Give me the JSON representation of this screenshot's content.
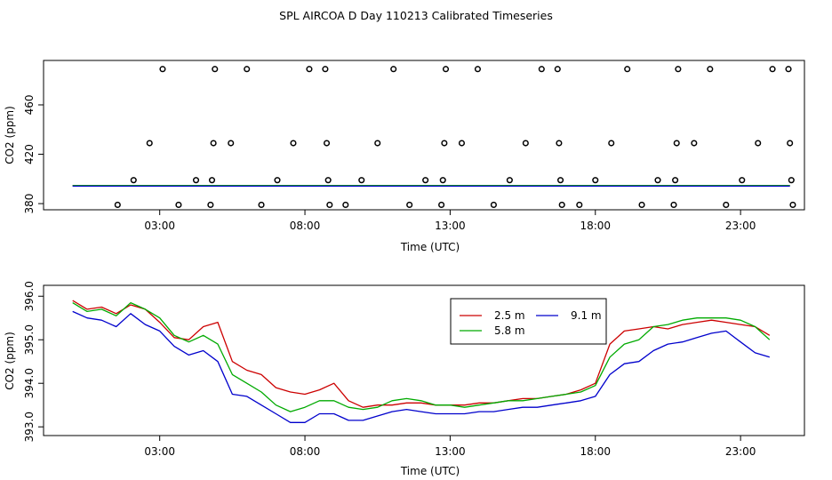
{
  "chart_data": {
    "title": "SPL AIRCOA D  Day 110213  Calibrated Timeseries",
    "x_ticks": [
      {
        "value": 3,
        "label": "03:00"
      },
      {
        "value": 8,
        "label": "08:00"
      },
      {
        "value": 13,
        "label": "13:00"
      },
      {
        "value": 18,
        "label": "18:00"
      },
      {
        "value": 23,
        "label": "23:00"
      }
    ],
    "xlim": [
      -1.0,
      25.2
    ],
    "panels": [
      {
        "type": "scatter",
        "xlabel": "Time (UTC)",
        "ylabel": "CO2 (ppm)",
        "ylim": [
          375,
          496
        ],
        "y_ticks": [
          {
            "value": 380,
            "label": "380"
          },
          {
            "value": 420,
            "label": "420"
          },
          {
            "value": 460,
            "label": "460"
          }
        ],
        "points": [
          {
            "x": 1.55,
            "y": 379
          },
          {
            "x": 2.1,
            "y": 399
          },
          {
            "x": 2.65,
            "y": 429
          },
          {
            "x": 3.1,
            "y": 489
          },
          {
            "x": 3.65,
            "y": 379
          },
          {
            "x": 4.25,
            "y": 399
          },
          {
            "x": 4.75,
            "y": 379
          },
          {
            "x": 4.8,
            "y": 399
          },
          {
            "x": 4.85,
            "y": 429
          },
          {
            "x": 4.9,
            "y": 489
          },
          {
            "x": 5.45,
            "y": 429
          },
          {
            "x": 6.0,
            "y": 489
          },
          {
            "x": 6.5,
            "y": 379
          },
          {
            "x": 7.05,
            "y": 399
          },
          {
            "x": 7.6,
            "y": 429
          },
          {
            "x": 8.15,
            "y": 489
          },
          {
            "x": 8.7,
            "y": 489
          },
          {
            "x": 8.75,
            "y": 429
          },
          {
            "x": 8.8,
            "y": 399
          },
          {
            "x": 8.85,
            "y": 379
          },
          {
            "x": 9.4,
            "y": 379
          },
          {
            "x": 9.95,
            "y": 399
          },
          {
            "x": 10.5,
            "y": 429
          },
          {
            "x": 11.05,
            "y": 489
          },
          {
            "x": 11.6,
            "y": 379
          },
          {
            "x": 12.15,
            "y": 399
          },
          {
            "x": 12.7,
            "y": 379
          },
          {
            "x": 12.75,
            "y": 399
          },
          {
            "x": 12.8,
            "y": 429
          },
          {
            "x": 12.85,
            "y": 489
          },
          {
            "x": 13.4,
            "y": 429
          },
          {
            "x": 13.95,
            "y": 489
          },
          {
            "x": 14.5,
            "y": 379
          },
          {
            "x": 15.05,
            "y": 399
          },
          {
            "x": 15.6,
            "y": 429
          },
          {
            "x": 16.15,
            "y": 489
          },
          {
            "x": 16.7,
            "y": 489
          },
          {
            "x": 16.75,
            "y": 429
          },
          {
            "x": 16.8,
            "y": 399
          },
          {
            "x": 16.85,
            "y": 379
          },
          {
            "x": 17.45,
            "y": 379
          },
          {
            "x": 18.0,
            "y": 399
          },
          {
            "x": 18.55,
            "y": 429
          },
          {
            "x": 19.1,
            "y": 489
          },
          {
            "x": 19.6,
            "y": 379
          },
          {
            "x": 20.15,
            "y": 399
          },
          {
            "x": 20.7,
            "y": 379
          },
          {
            "x": 20.75,
            "y": 399
          },
          {
            "x": 20.8,
            "y": 429
          },
          {
            "x": 20.85,
            "y": 489
          },
          {
            "x": 21.4,
            "y": 429
          },
          {
            "x": 21.95,
            "y": 489
          },
          {
            "x": 22.5,
            "y": 379
          },
          {
            "x": 23.05,
            "y": 399
          },
          {
            "x": 23.6,
            "y": 429
          },
          {
            "x": 24.1,
            "y": 489
          },
          {
            "x": 24.65,
            "y": 489
          },
          {
            "x": 24.7,
            "y": 429
          },
          {
            "x": 24.75,
            "y": 399
          },
          {
            "x": 24.8,
            "y": 379
          }
        ],
        "baseline_series": [
          {
            "name": "2.5 m",
            "color": "#cc0000",
            "y": 394.6
          },
          {
            "name": "5.8 m",
            "color": "#00aa00",
            "y": 394.7
          },
          {
            "name": "9.1 m",
            "color": "#0000cc",
            "y": 394.2
          }
        ],
        "baseline_x": [
          0,
          24.7
        ]
      },
      {
        "type": "line",
        "xlabel": "Time (UTC)",
        "ylabel": "CO2 (ppm)",
        "ylim": [
          392.8,
          396.25
        ],
        "y_ticks": [
          {
            "value": 393.0,
            "label": "393.0"
          },
          {
            "value": 394.0,
            "label": "394.0"
          },
          {
            "value": 395.0,
            "label": "395.0"
          },
          {
            "value": 396.0,
            "label": "396.0"
          }
        ],
        "legend_position": "top-right",
        "series": [
          {
            "name": "2.5 m",
            "color": "#cc0000",
            "x": [
              0.0,
              0.5,
              1.0,
              1.5,
              2.0,
              2.5,
              3.0,
              3.5,
              4.0,
              4.5,
              5.0,
              5.5,
              6.0,
              6.5,
              7.0,
              7.5,
              8.0,
              8.5,
              9.0,
              9.5,
              10.0,
              10.5,
              11.0,
              11.5,
              12.0,
              12.5,
              13.0,
              13.5,
              14.0,
              14.5,
              15.0,
              15.5,
              16.0,
              16.5,
              17.0,
              17.5,
              18.0,
              18.5,
              19.0,
              19.5,
              20.0,
              20.5,
              21.0,
              21.5,
              22.0,
              22.5,
              23.0,
              23.5,
              24.0
            ],
            "y": [
              395.9,
              395.7,
              395.75,
              395.6,
              395.8,
              395.7,
              395.4,
              395.05,
              395.0,
              395.3,
              395.4,
              394.5,
              394.3,
              394.2,
              393.9,
              393.8,
              393.75,
              393.85,
              394.0,
              393.6,
              393.45,
              393.5,
              393.5,
              393.55,
              393.55,
              393.5,
              393.5,
              393.5,
              393.55,
              393.55,
              393.6,
              393.65,
              393.65,
              393.7,
              393.75,
              393.85,
              394.0,
              394.9,
              395.2,
              395.25,
              395.3,
              395.25,
              395.35,
              395.4,
              395.45,
              395.4,
              395.35,
              395.3,
              395.1
            ]
          },
          {
            "name": "5.8 m",
            "color": "#00aa00",
            "x": [
              0.0,
              0.5,
              1.0,
              1.5,
              2.0,
              2.5,
              3.0,
              3.5,
              4.0,
              4.5,
              5.0,
              5.5,
              6.0,
              6.5,
              7.0,
              7.5,
              8.0,
              8.5,
              9.0,
              9.5,
              10.0,
              10.5,
              11.0,
              11.5,
              12.0,
              12.5,
              13.0,
              13.5,
              14.0,
              14.5,
              15.0,
              15.5,
              16.0,
              16.5,
              17.0,
              17.5,
              18.0,
              18.5,
              19.0,
              19.5,
              20.0,
              20.5,
              21.0,
              21.5,
              22.0,
              22.5,
              23.0,
              23.5,
              24.0
            ],
            "y": [
              395.85,
              395.65,
              395.7,
              395.55,
              395.85,
              395.7,
              395.5,
              395.1,
              394.95,
              395.1,
              394.9,
              394.2,
              394.0,
              393.8,
              393.5,
              393.35,
              393.45,
              393.6,
              393.6,
              393.45,
              393.4,
              393.45,
              393.6,
              393.65,
              393.6,
              393.5,
              393.5,
              393.45,
              393.5,
              393.55,
              393.6,
              393.6,
              393.65,
              393.7,
              393.75,
              393.8,
              393.95,
              394.6,
              394.9,
              395.0,
              395.3,
              395.35,
              395.45,
              395.5,
              395.5,
              395.5,
              395.45,
              395.3,
              395.0
            ]
          },
          {
            "name": "9.1 m",
            "color": "#0000cc",
            "x": [
              0.0,
              0.5,
              1.0,
              1.5,
              2.0,
              2.5,
              3.0,
              3.5,
              4.0,
              4.5,
              5.0,
              5.5,
              6.0,
              6.5,
              7.0,
              7.5,
              8.0,
              8.5,
              9.0,
              9.5,
              10.0,
              10.5,
              11.0,
              11.5,
              12.0,
              12.5,
              13.0,
              13.5,
              14.0,
              14.5,
              15.0,
              15.5,
              16.0,
              16.5,
              17.0,
              17.5,
              18.0,
              18.5,
              19.0,
              19.5,
              20.0,
              20.5,
              21.0,
              21.5,
              22.0,
              22.5,
              23.0,
              23.5,
              24.0
            ],
            "y": [
              395.65,
              395.5,
              395.45,
              395.3,
              395.6,
              395.35,
              395.2,
              394.85,
              394.65,
              394.75,
              394.5,
              393.75,
              393.7,
              393.5,
              393.3,
              393.1,
              393.1,
              393.3,
              393.3,
              393.15,
              393.15,
              393.25,
              393.35,
              393.4,
              393.35,
              393.3,
              393.3,
              393.3,
              393.35,
              393.35,
              393.4,
              393.45,
              393.45,
              393.5,
              393.55,
              393.6,
              393.7,
              394.2,
              394.45,
              394.5,
              394.75,
              394.9,
              394.95,
              395.05,
              395.15,
              395.2,
              394.95,
              394.7,
              394.6
            ]
          }
        ]
      }
    ]
  }
}
